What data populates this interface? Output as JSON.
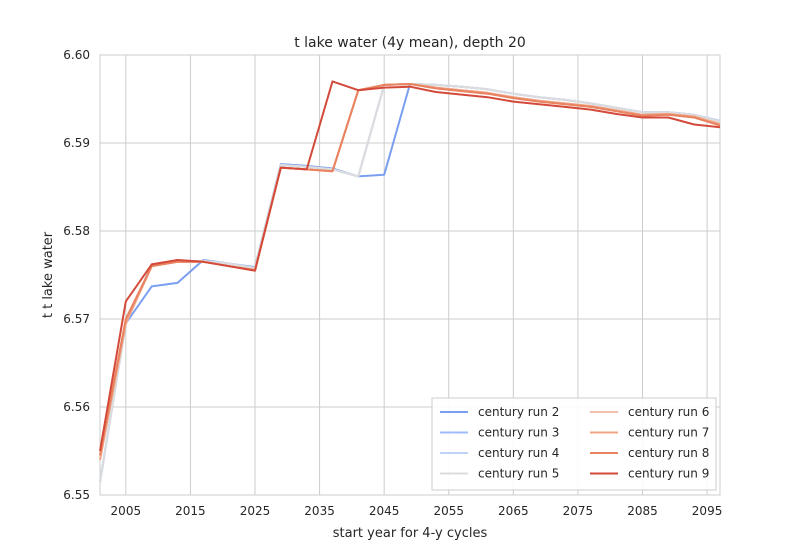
{
  "chart_data": {
    "type": "line",
    "title": "t lake water (4y mean), depth 20",
    "xlabel": "start year for 4-y cycles",
    "ylabel": "t t lake water",
    "xlim": [
      2001,
      2097
    ],
    "ylim": [
      6.55,
      6.6
    ],
    "xticks": [
      "2005",
      "2015",
      "2025",
      "2035",
      "2045",
      "2055",
      "2065",
      "2075",
      "2085",
      "2095"
    ],
    "yticks": [
      "6.55",
      "6.56",
      "6.57",
      "6.58",
      "6.59",
      "6.60"
    ],
    "grid": true,
    "legend_position": "lower-right",
    "legend_columns": 2,
    "x": [
      2001,
      2005,
      2009,
      2013,
      2017,
      2021,
      2025,
      2029,
      2033,
      2037,
      2041,
      2045,
      2049,
      2053,
      2057,
      2061,
      2065,
      2069,
      2073,
      2077,
      2081,
      2085,
      2089,
      2093,
      2097
    ],
    "series": [
      {
        "name": "century run 2",
        "color": "#7b9ff0",
        "values": [
          6.5515,
          6.5695,
          6.5737,
          6.5741,
          6.5767,
          6.5763,
          6.5759,
          6.5876,
          6.5874,
          6.5871,
          6.5862,
          6.5864,
          6.5967,
          6.5966,
          6.5964,
          6.5961,
          6.5956,
          6.5952,
          6.5949,
          6.5945,
          6.594,
          6.5935,
          6.5935,
          6.5932,
          6.5925
        ]
      },
      {
        "name": "century run 3",
        "color": "#9dbcf8",
        "values": [
          6.5515,
          6.5695,
          6.5762,
          6.5765,
          6.5766,
          6.5763,
          6.5758,
          6.5875,
          6.5873,
          6.587,
          6.5862,
          6.5966,
          6.5967,
          6.5966,
          6.5964,
          6.5961,
          6.5956,
          6.5952,
          6.5949,
          6.5945,
          6.594,
          6.5935,
          6.5935,
          6.5932,
          6.5925
        ]
      },
      {
        "name": "century run 4",
        "color": "#bfd3f6",
        "values": [
          6.5515,
          6.5695,
          6.5762,
          6.5765,
          6.5766,
          6.5763,
          6.5758,
          6.5875,
          6.5873,
          6.587,
          6.5862,
          6.5966,
          6.5967,
          6.5966,
          6.5964,
          6.5961,
          6.5956,
          6.5952,
          6.5949,
          6.5945,
          6.594,
          6.5935,
          6.5935,
          6.5932,
          6.5925
        ]
      },
      {
        "name": "century run 5",
        "color": "#dcdcdc",
        "values": [
          6.5515,
          6.5695,
          6.5762,
          6.5765,
          6.5766,
          6.5763,
          6.5758,
          6.5875,
          6.5873,
          6.587,
          6.5862,
          6.5966,
          6.5967,
          6.5966,
          6.5964,
          6.5961,
          6.5956,
          6.5952,
          6.5949,
          6.5945,
          6.594,
          6.5935,
          6.5935,
          6.5932,
          6.5924
        ]
      },
      {
        "name": "century run 6",
        "color": "#f2c0a8",
        "values": [
          6.554,
          6.5695,
          6.576,
          6.5765,
          6.5765,
          6.576,
          6.5756,
          6.5872,
          6.587,
          6.5868,
          6.596,
          6.5966,
          6.5967,
          6.5963,
          6.596,
          6.5957,
          6.5952,
          6.5948,
          6.5945,
          6.5942,
          6.5937,
          6.5932,
          6.5933,
          6.593,
          6.5922
        ]
      },
      {
        "name": "century run 7",
        "color": "#f0a486",
        "values": [
          6.554,
          6.5695,
          6.576,
          6.5765,
          6.5765,
          6.576,
          6.5756,
          6.5872,
          6.587,
          6.5868,
          6.596,
          6.5966,
          6.5967,
          6.5963,
          6.596,
          6.5957,
          6.5952,
          6.5948,
          6.5945,
          6.5942,
          6.5937,
          6.5932,
          6.5933,
          6.593,
          6.5921
        ]
      },
      {
        "name": "century run 8",
        "color": "#e8825f",
        "values": [
          6.5545,
          6.57,
          6.576,
          6.5765,
          6.5765,
          6.576,
          6.5755,
          6.5872,
          6.587,
          6.5868,
          6.596,
          6.5966,
          6.5967,
          6.5962,
          6.5959,
          6.5956,
          6.5951,
          6.5947,
          6.5944,
          6.5941,
          6.5936,
          6.5931,
          6.5932,
          6.5929,
          6.592
        ]
      },
      {
        "name": "century run 9",
        "color": "#d44a3a",
        "values": [
          6.555,
          6.572,
          6.5762,
          6.5767,
          6.5765,
          6.576,
          6.5755,
          6.5872,
          6.587,
          6.597,
          6.596,
          6.5963,
          6.5964,
          6.5958,
          6.5955,
          6.5952,
          6.5947,
          6.5944,
          6.5941,
          6.5938,
          6.5933,
          6.5929,
          6.5929,
          6.5921,
          6.5918
        ]
      }
    ]
  }
}
